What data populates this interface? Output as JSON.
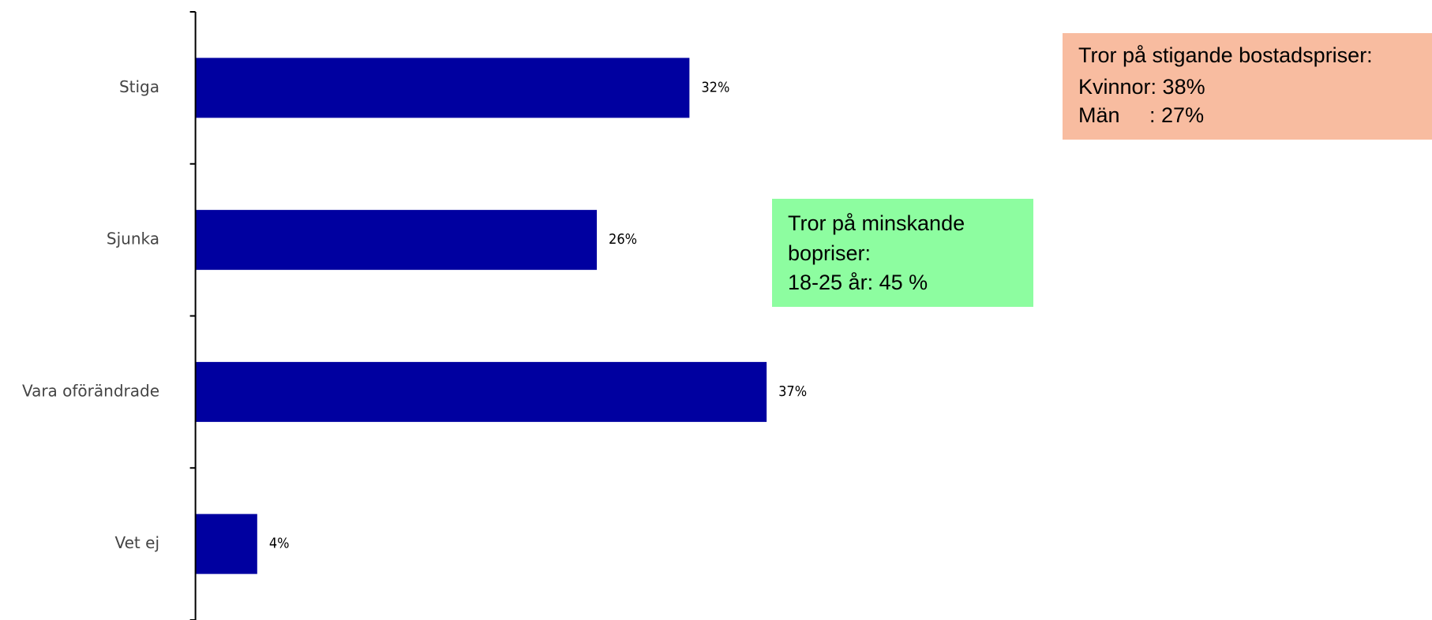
{
  "chart_data": {
    "type": "bar",
    "orientation": "horizontal",
    "categories": [
      "Stiga",
      "Sjunka",
      "Vara oförändrade",
      "Vet ej"
    ],
    "values": [
      32,
      26,
      37,
      4
    ],
    "value_labels": [
      "32%",
      "26%",
      "37%",
      "4%"
    ],
    "color": "#0000a0",
    "xlim": [
      0,
      80
    ],
    "annotations": [
      {
        "lines": [
          "Tror på stigande bostadspriser:",
          "Kvinnor: 38%",
          "Män     : 27%"
        ],
        "color": "#f8bca0"
      },
      {
        "lines": [
          "Tror på minskande",
          "bopriser:",
          "18-25 år: 45 %"
        ],
        "color": "#8dfda0"
      }
    ]
  }
}
